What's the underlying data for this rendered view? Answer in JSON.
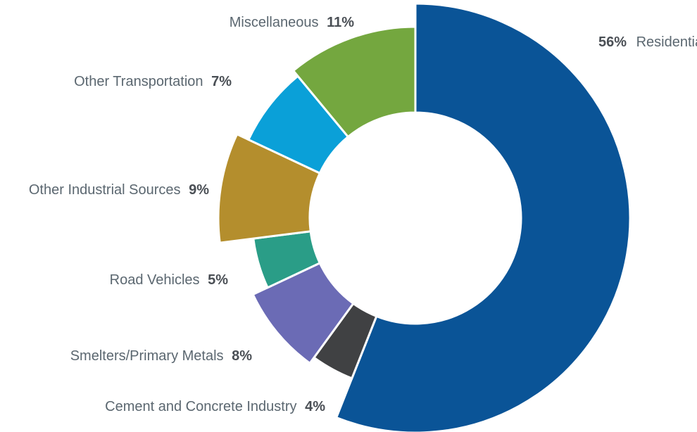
{
  "chart_data": {
    "type": "pie",
    "title": "",
    "inner_radius_visible": true,
    "slices": [
      {
        "label": "Residential",
        "value": 56,
        "value_label": "56%",
        "color": "#0a5497"
      },
      {
        "label": "Cement and Concrete Industry",
        "value": 4,
        "value_label": "4%",
        "color": "#404143"
      },
      {
        "label": "Smelters/Primary Metals",
        "value": 8,
        "value_label": "8%",
        "color": "#6b6bb5"
      },
      {
        "label": "Road Vehicles",
        "value": 5,
        "value_label": "5%",
        "color": "#2a9d87"
      },
      {
        "label": "Other Industrial Sources",
        "value": 9,
        "value_label": "9%",
        "color": "#b48e2d"
      },
      {
        "label": "Other Transportation",
        "value": 7,
        "value_label": "7%",
        "color": "#0aa0d8"
      },
      {
        "label": "Miscellaneous",
        "value": 11,
        "value_label": "11%",
        "color": "#74a73f"
      }
    ]
  }
}
